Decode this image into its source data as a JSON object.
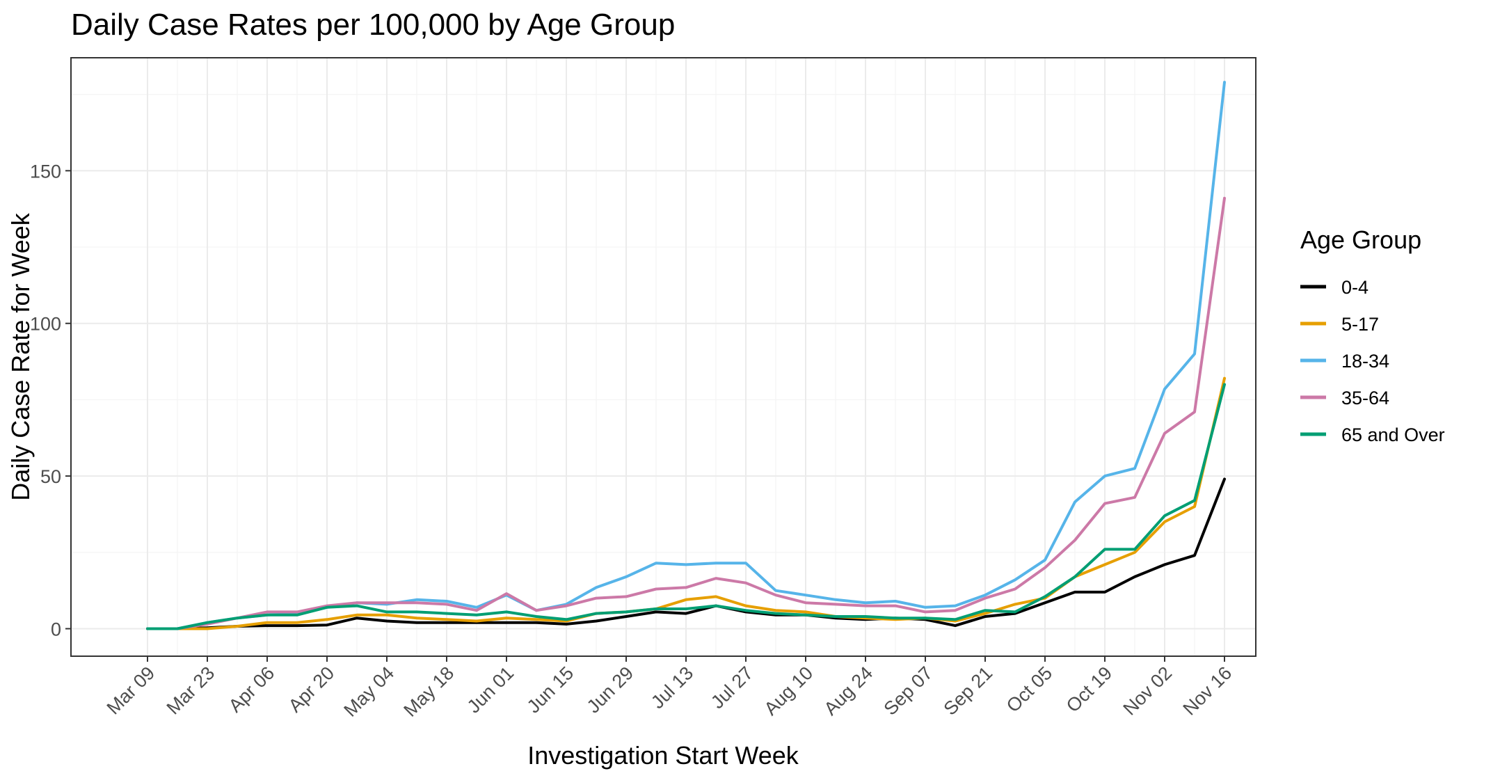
{
  "chart_data": {
    "type": "line",
    "title": "Daily Case Rates per 100,000 by Age Group",
    "xlabel": "Investigation Start Week",
    "ylabel": "Daily Case Rate for Week",
    "x": [
      "Mar 09",
      "Mar 16",
      "Mar 23",
      "Mar 30",
      "Apr 06",
      "Apr 13",
      "Apr 20",
      "Apr 27",
      "May 04",
      "May 11",
      "May 18",
      "May 25",
      "Jun 01",
      "Jun 08",
      "Jun 15",
      "Jun 22",
      "Jun 29",
      "Jul 06",
      "Jul 13",
      "Jul 20",
      "Jul 27",
      "Aug 03",
      "Aug 10",
      "Aug 17",
      "Aug 24",
      "Aug 31",
      "Sep 07",
      "Sep 14",
      "Sep 21",
      "Sep 28",
      "Oct 05",
      "Oct 12",
      "Oct 19",
      "Oct 26",
      "Nov 02",
      "Nov 09",
      "Nov 16"
    ],
    "x_tick_labels": [
      "Mar 09",
      "Mar 23",
      "Apr 06",
      "Apr 20",
      "May 04",
      "May 18",
      "Jun 01",
      "Jun 15",
      "Jun 29",
      "Jul 13",
      "Jul 27",
      "Aug 10",
      "Aug 24",
      "Sep 07",
      "Sep 21",
      "Oct 05",
      "Oct 19",
      "Nov 02",
      "Nov 16"
    ],
    "y_ticks": [
      0,
      50,
      100,
      150
    ],
    "ylim": [
      -9,
      187
    ],
    "grid": true,
    "legend_title": "Age Group",
    "legend_position": "right",
    "series": [
      {
        "name": "0-4",
        "color": "#000000",
        "values": [
          0,
          0,
          0.3,
          0.8,
          1,
          1,
          1.2,
          3.5,
          2.5,
          2,
          2,
          2,
          2,
          2,
          1.5,
          2.5,
          4,
          5.5,
          5,
          7.5,
          5.5,
          4.5,
          4.5,
          3.5,
          3,
          3.5,
          3,
          1,
          4,
          5,
          8.5,
          12,
          12,
          17,
          21,
          24,
          49
        ]
      },
      {
        "name": "5-17",
        "color": "#E69F00",
        "values": [
          0,
          0,
          0,
          0.8,
          2,
          2,
          3,
          4.5,
          4.5,
          3.5,
          3,
          2.5,
          3.5,
          3,
          2.5,
          5,
          5.5,
          6.5,
          9.5,
          10.5,
          7.5,
          6,
          5.5,
          4,
          3.5,
          3,
          3.5,
          2.5,
          5,
          8,
          10,
          17,
          21,
          25,
          35,
          40,
          82
        ]
      },
      {
        "name": "18-34",
        "color": "#56B4E9",
        "values": [
          0,
          0,
          2,
          3.5,
          4.5,
          5,
          7,
          8.5,
          8,
          9.5,
          9,
          7,
          11,
          6,
          8,
          13.5,
          17,
          21.5,
          21,
          21.5,
          21.5,
          12.5,
          11,
          9.5,
          8.5,
          9,
          7,
          7.5,
          11,
          16,
          22.5,
          41.5,
          50,
          52.5,
          78.5,
          90,
          179
        ]
      },
      {
        "name": "35-64",
        "color": "#CC79A7",
        "values": [
          0,
          0,
          1.5,
          3.5,
          5.5,
          5.5,
          7.5,
          8.5,
          8.5,
          8.5,
          8,
          6,
          11.5,
          6,
          7.5,
          10,
          10.5,
          13,
          13.5,
          16.5,
          15,
          11,
          8.5,
          8,
          7.5,
          7.5,
          5.5,
          6,
          10,
          13,
          20,
          29,
          41,
          43,
          64,
          71,
          141
        ]
      },
      {
        "name": "65 and Over",
        "color": "#009E73",
        "values": [
          0,
          0,
          2,
          3.5,
          4.5,
          4.5,
          7,
          7.5,
          5.5,
          5.5,
          5,
          4.5,
          5.5,
          4,
          3,
          5,
          5.5,
          6.5,
          6.5,
          7.5,
          6,
          5,
          4.5,
          4,
          4,
          3.5,
          3.5,
          3,
          6,
          5.5,
          10.5,
          17,
          26,
          26,
          37,
          42,
          80
        ]
      }
    ]
  }
}
